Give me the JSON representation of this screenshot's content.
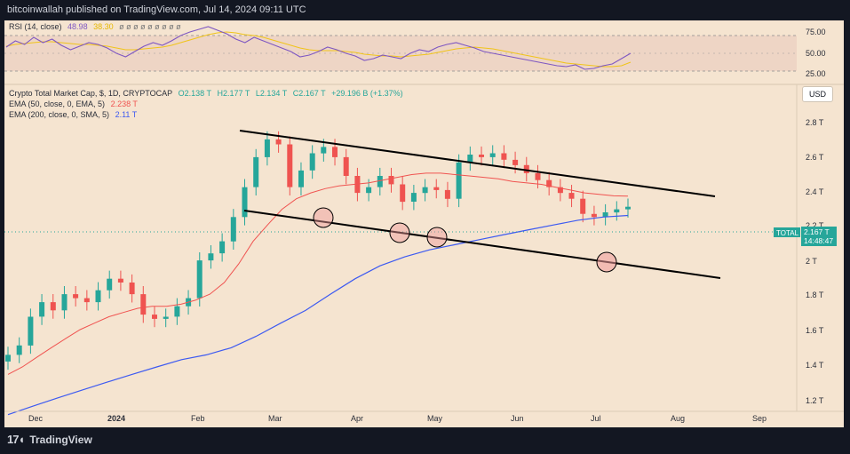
{
  "header": {
    "published": "bitcoinwallah published on TradingView.com, Jul 14, 2024 09:11 UTC"
  },
  "footer": {
    "brand": "TradingView",
    "brand_icon": "tradingview-logo-icon"
  },
  "colors": {
    "background": "#f5e4d0",
    "up": "#26a69a",
    "down": "#ef5350",
    "ema50": "#f05350",
    "sma200": "#3d5af1",
    "rsi": "#7e57c2",
    "rsi_ma": "#f0c419"
  },
  "rsi_legend": {
    "label": "RSI (14, close)",
    "value1": "48.98",
    "value2": "38.30"
  },
  "price_legend": {
    "symbol": "Crypto Total Market Cap, $, 1D, CRYPTOCAP",
    "o": "O2.138 T",
    "h": "H2.177 T",
    "l": "L2.134 T",
    "c": "C2.167 T",
    "change": "+29.196 B (+1.37%)",
    "ema50_label": "EMA (50, close, 0, EMA, 5)",
    "ema50_value": "2.238 T",
    "sma200_label": "EMA (200, close, 0, SMA, 5)",
    "sma200_value": "2.11 T"
  },
  "currency_button": "USD",
  "last_price_label": {
    "name": "TOTAL",
    "value": "2.167 T",
    "countdown": "14:48:47"
  },
  "chart_data": [
    {
      "type": "line",
      "title": "RSI (14, close)",
      "y_ticks": [
        "75.00",
        "50.00",
        "25.00"
      ],
      "ylim": [
        20,
        80
      ],
      "overbought": 70,
      "oversold": 30,
      "series": [
        {
          "name": "RSI",
          "values": [
            55,
            62,
            58,
            66,
            60,
            64,
            57,
            52,
            56,
            60,
            58,
            54,
            48,
            44,
            50,
            56,
            60,
            57,
            62,
            68,
            72,
            75,
            78,
            74,
            70,
            64,
            60,
            66,
            62,
            58,
            54,
            50,
            44,
            46,
            50,
            55,
            52,
            48,
            45,
            40,
            42,
            46,
            44,
            42,
            48,
            52,
            50,
            55,
            58,
            60,
            57,
            54,
            50,
            48,
            46,
            44,
            42,
            40,
            38,
            36,
            34,
            33,
            35,
            30,
            31,
            34,
            36,
            42,
            48
          ]
        },
        {
          "name": "MA",
          "values": [
            56,
            58,
            59,
            60,
            61,
            61,
            60,
            59,
            58,
            58,
            57,
            56,
            54,
            52,
            52,
            53,
            54,
            55,
            57,
            60,
            63,
            66,
            69,
            71,
            72,
            71,
            69,
            68,
            66,
            63,
            60,
            57,
            54,
            52,
            51,
            51,
            51,
            50,
            49,
            47,
            46,
            45,
            45,
            44,
            45,
            46,
            47,
            49,
            51,
            53,
            54,
            55,
            54,
            53,
            51,
            49,
            47,
            45,
            43,
            41,
            39,
            37,
            36,
            35,
            34,
            33,
            33,
            34,
            38
          ]
        }
      ]
    },
    {
      "type": "candlestick",
      "title": "Crypto Total Market Cap, $, 1D, CRYPTOCAP",
      "x_ticks": [
        "Dec",
        "2024",
        "Feb",
        "Mar",
        "Apr",
        "May",
        "Jun",
        "Jul",
        "Aug",
        "Sep"
      ],
      "y_ticks": [
        "2.8 T",
        "2.6 T",
        "2.4 T",
        "2.2 T",
        "2 T",
        "1.8 T",
        "1.6 T",
        "1.4 T",
        "1.2 T"
      ],
      "y_scale": "log",
      "ylim": [
        1.18,
        2.95
      ],
      "close_series": [
        1.38,
        1.42,
        1.55,
        1.62,
        1.58,
        1.66,
        1.64,
        1.62,
        1.68,
        1.74,
        1.72,
        1.66,
        1.56,
        1.54,
        1.55,
        1.6,
        1.64,
        1.84,
        1.88,
        1.95,
        2.1,
        2.3,
        2.52,
        2.66,
        2.62,
        2.3,
        2.42,
        2.55,
        2.6,
        2.52,
        2.38,
        2.26,
        2.3,
        2.38,
        2.32,
        2.2,
        2.26,
        2.3,
        2.28,
        2.22,
        2.48,
        2.54,
        2.52,
        2.55,
        2.5,
        2.46,
        2.4,
        2.35,
        2.3,
        2.26,
        2.22,
        2.12,
        2.1,
        2.13,
        2.15,
        2.167
      ],
      "ema50": [
        1.3,
        1.33,
        1.37,
        1.41,
        1.45,
        1.49,
        1.52,
        1.55,
        1.57,
        1.59,
        1.6,
        1.6,
        1.61,
        1.63,
        1.66,
        1.72,
        1.82,
        1.95,
        2.05,
        2.15,
        2.22,
        2.26,
        2.29,
        2.31,
        2.32,
        2.33,
        2.35,
        2.37,
        2.39,
        2.4,
        2.4,
        2.39,
        2.38,
        2.37,
        2.36,
        2.34,
        2.33,
        2.32,
        2.3,
        2.28,
        2.26,
        2.25,
        2.24,
        2.238
      ],
      "sma200": [
        1.15,
        1.18,
        1.21,
        1.24,
        1.27,
        1.3,
        1.33,
        1.36,
        1.38,
        1.41,
        1.46,
        1.52,
        1.58,
        1.66,
        1.74,
        1.81,
        1.86,
        1.9,
        1.93,
        1.96,
        1.99,
        2.02,
        2.05,
        2.08,
        2.1,
        2.11
      ],
      "channel": {
        "upper": [
          [
            "Feb 21",
            "2.77"
          ],
          [
            "Aug 17",
            "2.38"
          ]
        ],
        "lower": [
          [
            "Feb 21",
            "2.26"
          ],
          [
            "Aug 20",
            "1.91"
          ]
        ]
      },
      "touch_points": [
        "Mar 20",
        "Apr 19",
        "May 1",
        "Jul 5"
      ],
      "last_value": 2.167
    }
  ]
}
